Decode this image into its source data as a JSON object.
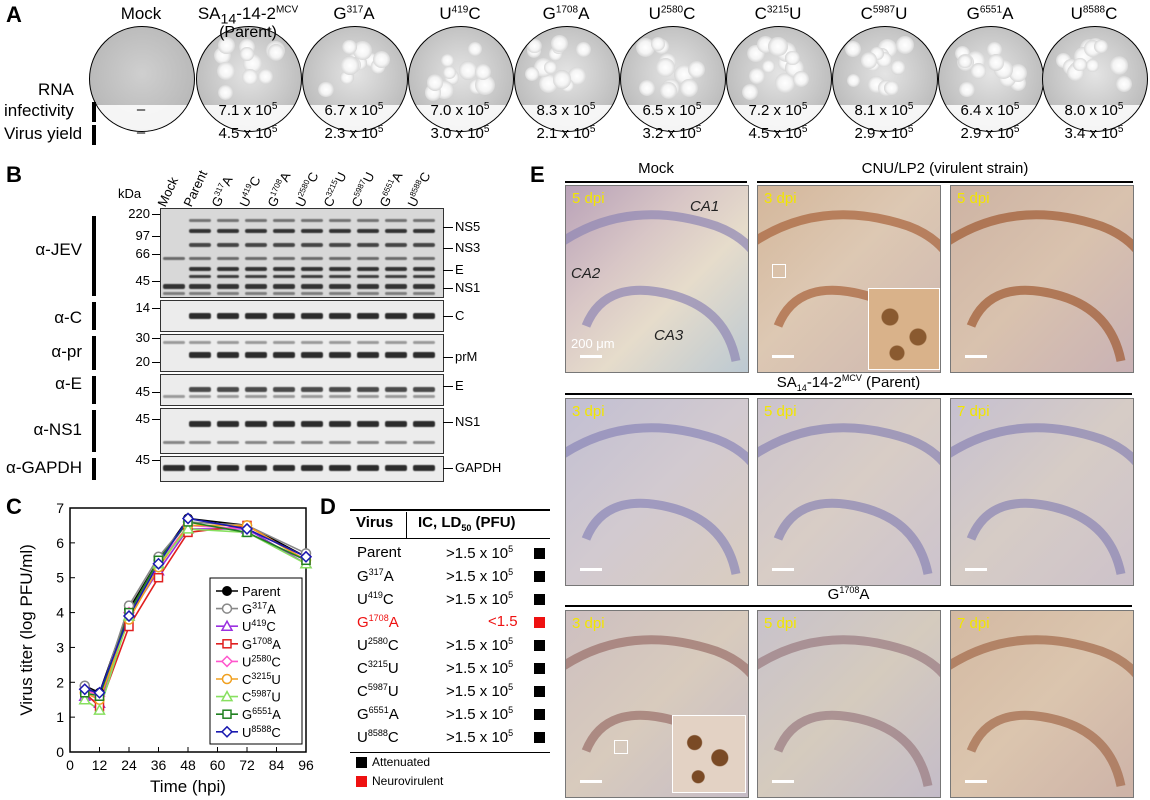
{
  "panel_labels": {
    "a": "A",
    "b": "B",
    "c": "C",
    "d": "D",
    "e": "E"
  },
  "panel_a": {
    "row_labels": {
      "rna_1": "RNA",
      "rna_2": "infectivity",
      "yield": "Virus yield"
    },
    "viruses": [
      {
        "base": "Mock",
        "sup": "",
        "suffix": "",
        "rna": "–",
        "yield": "–"
      },
      {
        "base": "SA14-14-2",
        "sup": "MCV",
        "suffix": "",
        "sub": "(Parent)",
        "rna": "7.1 x 10",
        "yield": "4.5 x 10"
      },
      {
        "base": "G",
        "sup": "317",
        "suffix": "A",
        "rna": "6.7 x 10",
        "yield": "2.3 x 10"
      },
      {
        "base": "U",
        "sup": "419",
        "suffix": "C",
        "rna": "7.0 x 10",
        "yield": "3.0 x 10"
      },
      {
        "base": "G",
        "sup": "1708",
        "suffix": "A",
        "rna": "8.3 x 10",
        "yield": "2.1 x 10"
      },
      {
        "base": "U",
        "sup": "2580",
        "suffix": "C",
        "rna": "6.5 x 10",
        "yield": "3.2 x 10"
      },
      {
        "base": "C",
        "sup": "3215",
        "suffix": "U",
        "rna": "7.2 x 10",
        "yield": "4.5 x 10"
      },
      {
        "base": "C",
        "sup": "5987",
        "suffix": "U",
        "rna": "8.1 x 10",
        "yield": "2.9 x 10"
      },
      {
        "base": "G",
        "sup": "6551",
        "suffix": "A",
        "rna": "6.4 x 10",
        "yield": "2.9 x 10"
      },
      {
        "base": "U",
        "sup": "8588",
        "suffix": "C",
        "rna": "8.0 x 10",
        "yield": "3.4 x 10"
      }
    ],
    "exponent": "5"
  },
  "panel_b": {
    "kda_label": "kDa",
    "lanes": [
      {
        "base": "Mock",
        "sup": "",
        "suffix": ""
      },
      {
        "base": "Parent",
        "sup": "",
        "suffix": ""
      },
      {
        "base": "G",
        "sup": "317",
        "suffix": "A"
      },
      {
        "base": "U",
        "sup": "419",
        "suffix": "C"
      },
      {
        "base": "G",
        "sup": "1708",
        "suffix": "A"
      },
      {
        "base": "U",
        "sup": "2580",
        "suffix": "C"
      },
      {
        "base": "C",
        "sup": "3215",
        "suffix": "U"
      },
      {
        "base": "C",
        "sup": "5987",
        "suffix": "U"
      },
      {
        "base": "G",
        "sup": "6551",
        "suffix": "A"
      },
      {
        "base": "U",
        "sup": "8588",
        "suffix": "C"
      }
    ],
    "antibodies": [
      "α-JEV",
      "α-C",
      "α-pr",
      "α-E",
      "α-NS1",
      "α-GAPDH"
    ],
    "markers": [
      "220",
      "97",
      "66",
      "45",
      "14",
      "30",
      "20",
      "45",
      "45",
      "45"
    ],
    "band_labels": [
      "NS5",
      "NS3",
      "E",
      "NS1",
      "C",
      "prM",
      "E",
      "NS1",
      "GAPDH"
    ]
  },
  "panel_c": {
    "ylabel": "Virus titer (log PFU/ml)",
    "xlabel": "Time (hpi)"
  },
  "chart_data": {
    "type": "line",
    "title": "",
    "xlabel": "Time (hpi)",
    "ylabel": "Virus titer (log PFU/ml)",
    "x": [
      6,
      12,
      24,
      36,
      48,
      72,
      96
    ],
    "xticks": [
      "0",
      "12",
      "24",
      "36",
      "48",
      "60",
      "72",
      "84",
      "96"
    ],
    "yticks": [
      "0",
      "1",
      "2",
      "3",
      "4",
      "5",
      "6",
      "7"
    ],
    "xlim": [
      0,
      96
    ],
    "ylim": [
      0,
      7
    ],
    "grid": false,
    "legend": "bottom-right",
    "series": [
      {
        "name": "Parent",
        "color": "#000000",
        "marker": "filled-circle",
        "values": [
          1.9,
          1.7,
          4.1,
          5.5,
          6.7,
          6.5,
          5.6
        ]
      },
      {
        "name": "G317A",
        "color": "#888888",
        "marker": "circle",
        "values": [
          1.9,
          1.6,
          4.2,
          5.6,
          6.6,
          6.5,
          5.7
        ]
      },
      {
        "name": "U419C",
        "color": "#9b30e0",
        "marker": "triangle",
        "values": [
          1.6,
          1.4,
          3.9,
          5.2,
          6.4,
          6.4,
          5.4
        ]
      },
      {
        "name": "G1708A",
        "color": "#e02020",
        "marker": "square",
        "values": [
          1.7,
          1.3,
          3.6,
          5.0,
          6.3,
          6.5,
          5.5
        ]
      },
      {
        "name": "U2580C",
        "color": "#ff55cc",
        "marker": "diamond",
        "values": [
          1.8,
          1.6,
          4.0,
          5.4,
          6.5,
          6.4,
          5.6
        ]
      },
      {
        "name": "C3215U",
        "color": "#f0a020",
        "marker": "circle",
        "values": [
          1.7,
          1.5,
          3.8,
          5.3,
          6.5,
          6.5,
          5.5
        ]
      },
      {
        "name": "C5987U",
        "color": "#88e060",
        "marker": "triangle",
        "values": [
          1.5,
          1.2,
          3.9,
          5.4,
          6.4,
          6.3,
          5.4
        ]
      },
      {
        "name": "G6551A",
        "color": "#208020",
        "marker": "square",
        "values": [
          1.7,
          1.6,
          4.0,
          5.5,
          6.6,
          6.3,
          5.5
        ]
      },
      {
        "name": "U8588C",
        "color": "#1a1ab0",
        "marker": "diamond",
        "values": [
          1.8,
          1.7,
          3.9,
          5.4,
          6.7,
          6.4,
          5.6
        ]
      }
    ]
  },
  "panel_d": {
    "col_virus": "Virus",
    "col_ld50": "IC, LD50 (PFU)",
    "rows": [
      {
        "base": "Parent",
        "sup": "",
        "suffix": "",
        "value": ">1.5 x 10",
        "exp": "5",
        "status": "attenuated"
      },
      {
        "base": "G",
        "sup": "317",
        "suffix": "A",
        "value": ">1.5 x 10",
        "exp": "5",
        "status": "attenuated"
      },
      {
        "base": "U",
        "sup": "419",
        "suffix": "C",
        "value": ">1.5 x 10",
        "exp": "5",
        "status": "attenuated"
      },
      {
        "base": "G",
        "sup": "1708",
        "suffix": "A",
        "value": "<1.5",
        "exp": "",
        "status": "neurovirulent"
      },
      {
        "base": "U",
        "sup": "2580",
        "suffix": "C",
        "value": ">1.5 x 10",
        "exp": "5",
        "status": "attenuated"
      },
      {
        "base": "C",
        "sup": "3215",
        "suffix": "U",
        "value": ">1.5 x 10",
        "exp": "5",
        "status": "attenuated"
      },
      {
        "base": "C",
        "sup": "5987",
        "suffix": "U",
        "value": ">1.5 x 10",
        "exp": "5",
        "status": "attenuated"
      },
      {
        "base": "G",
        "sup": "6551",
        "suffix": "A",
        "value": ">1.5 x 10",
        "exp": "5",
        "status": "attenuated"
      },
      {
        "base": "U",
        "sup": "8588",
        "suffix": "C",
        "value": ">1.5 x 10",
        "exp": "5",
        "status": "attenuated"
      }
    ],
    "legend_attenuated": "Attenuated",
    "legend_neurovirulent": "Neurovirulent",
    "colors": {
      "attenuated": "#000000",
      "neurovirulent": "#ee1111"
    }
  },
  "panel_e": {
    "headers": {
      "mock": "Mock",
      "cnu": "CNU/LP2 (virulent strain)",
      "parent_base": "SA",
      "parent_sub": "14",
      "parent_rest": "-14-2",
      "parent_sup": "MCV",
      "parent_tail": "(Parent)",
      "mut_base": "G",
      "mut_sup": "1708",
      "mut_suffix": "A"
    },
    "dpi": [
      "5 dpi",
      "3 dpi",
      "5 dpi",
      "3 dpi",
      "5 dpi",
      "7 dpi",
      "3 dpi",
      "5 dpi",
      "7 dpi"
    ],
    "regions": {
      "ca1": "CA1",
      "ca2": "CA2",
      "ca3": "CA3"
    },
    "scale": "200 μm"
  }
}
